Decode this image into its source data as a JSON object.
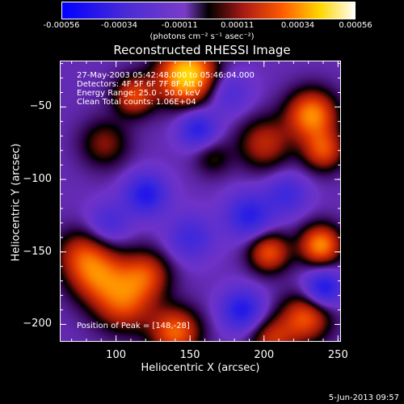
{
  "colorbar": {
    "tick_labels": [
      "-0.00056",
      "-0.00034",
      "-0.00011",
      "0.00011",
      "0.00034",
      "0.00056"
    ],
    "tick_values": [
      -0.00056,
      -0.00034,
      -0.00011,
      0.00011,
      0.00034,
      0.00056
    ],
    "range": [
      -0.00056,
      0.00056
    ],
    "units_label": "(photons cm⁻² s⁻¹ asec⁻²)"
  },
  "chart_data": {
    "type": "heatmap",
    "title": "Reconstructed RHESSI Image",
    "xlabel": "Heliocentric X (arcsec)",
    "ylabel": "Heliocentric Y (arcsec)",
    "xlim": [
      62,
      252
    ],
    "ylim": [
      -212,
      -18
    ],
    "x_ticks": [
      100,
      150,
      200,
      250
    ],
    "x_tick_labels": [
      "100",
      "150",
      "200",
      "250"
    ],
    "y_ticks": [
      -50,
      -100,
      -150,
      -200
    ],
    "y_tick_labels": [
      "−50",
      "−100",
      "−150",
      "−200"
    ],
    "colormap": "rhessi-blue-purple-red-yellow-white",
    "annotations": {
      "line1": "27-May-2003 05:42:48.000 to 05:46:04.000",
      "line2": "Detectors: 4F 5F 6F 7F 8F  Att 0",
      "line3": "Energy Range: 25.0 - 50.0 keV",
      "line4": "Clean     Total counts: 1.06E+04",
      "peak": "Position of Peak = [148,-28]"
    },
    "sources": [
      {
        "x": 148,
        "y": -28,
        "sigma": 14,
        "amp": 1.0
      },
      {
        "x": 112,
        "y": -42,
        "sigma": 10,
        "amp": 0.55
      },
      {
        "x": 92,
        "y": -75,
        "sigma": 12,
        "amp": 0.35
      },
      {
        "x": 75,
        "y": -150,
        "sigma": 12,
        "amp": 0.35
      },
      {
        "x": 87,
        "y": -165,
        "sigma": 14,
        "amp": 0.6
      },
      {
        "x": 120,
        "y": -165,
        "sigma": 12,
        "amp": 0.5
      },
      {
        "x": 105,
        "y": -185,
        "sigma": 14,
        "amp": 0.55
      },
      {
        "x": 140,
        "y": -205,
        "sigma": 12,
        "amp": 0.65
      },
      {
        "x": 200,
        "y": -75,
        "sigma": 13,
        "amp": 0.45
      },
      {
        "x": 232,
        "y": -55,
        "sigma": 12,
        "amp": 0.75
      },
      {
        "x": 240,
        "y": -80,
        "sigma": 10,
        "amp": 0.55
      },
      {
        "x": 203,
        "y": -150,
        "sigma": 10,
        "amp": 0.6
      },
      {
        "x": 238,
        "y": -145,
        "sigma": 10,
        "amp": 0.75
      },
      {
        "x": 228,
        "y": -195,
        "sigma": 12,
        "amp": 0.6
      },
      {
        "x": 205,
        "y": -210,
        "sigma": 11,
        "amp": 0.45
      },
      {
        "x": 165,
        "y": -85,
        "sigma": 9,
        "amp": 0.25
      },
      {
        "x": 120,
        "y": -110,
        "sigma": 10,
        "amp": -0.55
      },
      {
        "x": 155,
        "y": -65,
        "sigma": 9,
        "amp": -0.5
      },
      {
        "x": 190,
        "y": -125,
        "sigma": 11,
        "amp": -0.5
      },
      {
        "x": 240,
        "y": -175,
        "sigma": 9,
        "amp": -0.6
      },
      {
        "x": 185,
        "y": -190,
        "sigma": 10,
        "amp": -0.55
      },
      {
        "x": 95,
        "y": -130,
        "sigma": 10,
        "amp": -0.3
      },
      {
        "x": 150,
        "y": -140,
        "sigma": 11,
        "amp": -0.35
      },
      {
        "x": 215,
        "y": -110,
        "sigma": 10,
        "amp": -0.35
      },
      {
        "x": 175,
        "y": -40,
        "sigma": 11,
        "amp": -0.3
      }
    ]
  },
  "footer": {
    "datestamp": "5-Jun-2013 09:57"
  }
}
